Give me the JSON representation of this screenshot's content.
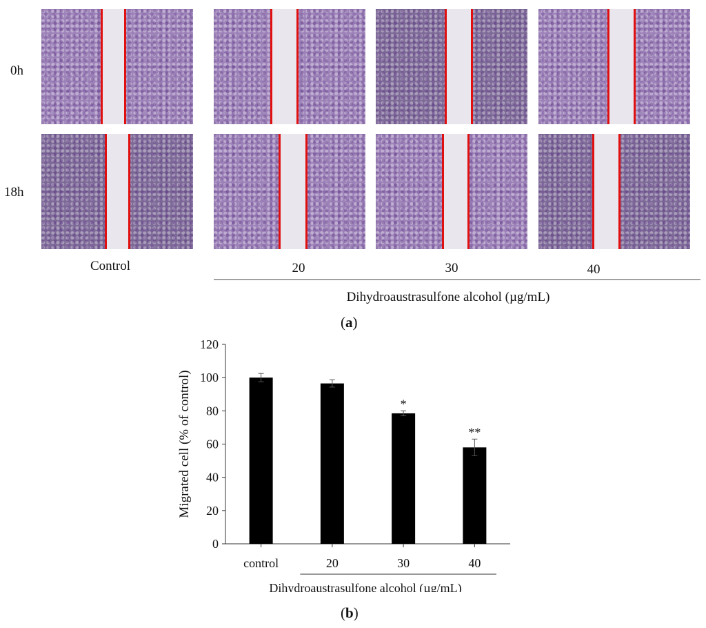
{
  "panel_a": {
    "row_labels": [
      "0h",
      "18h"
    ],
    "column_labels": [
      "Control",
      "20",
      "30",
      "40"
    ],
    "group_label": "Dihydroaustrasulfone alcohol  (µg/mL)",
    "caption": "a"
  },
  "panel_b": {
    "caption": "b"
  },
  "chart_data": {
    "type": "bar",
    "categories": [
      "control",
      "20",
      "30",
      "40"
    ],
    "values": [
      100,
      96.5,
      78.5,
      58
    ],
    "errors": [
      2.5,
      2.2,
      1.5,
      5.0
    ],
    "annotations": [
      "",
      "",
      "*",
      "**"
    ],
    "ylabel": "Migrated cell (% of control)",
    "xlabel": "Dihydroaustrasulfone alcohol  (µg/mL)",
    "ylim": [
      0,
      120
    ],
    "yticks": [
      0,
      20,
      40,
      60,
      80,
      100,
      120
    ],
    "bar_color": "#000000",
    "grid": false
  }
}
